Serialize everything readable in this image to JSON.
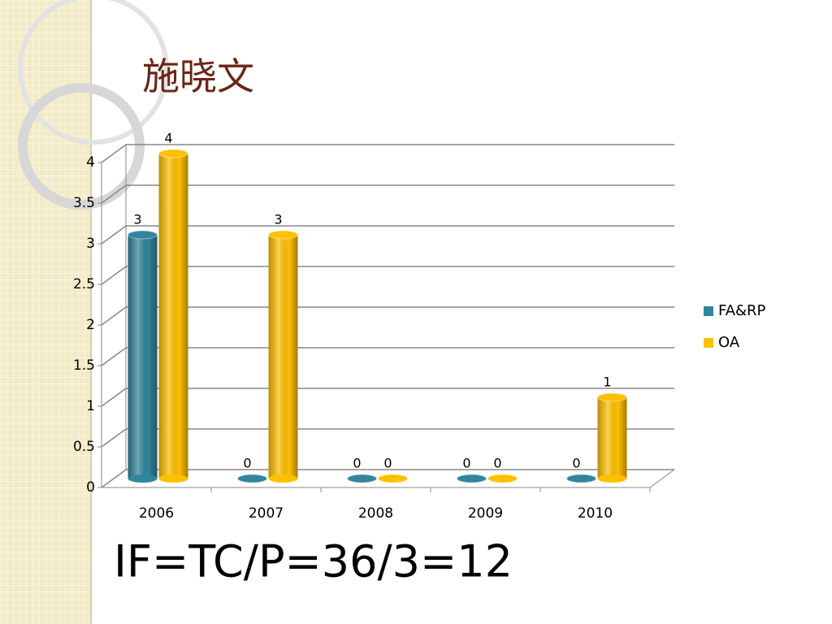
{
  "chart_data": {
    "type": "bar",
    "title": "施晓文",
    "annotation": "IF=TC/P=36/3=12",
    "categories": [
      "2006",
      "2007",
      "2008",
      "2009",
      "2010"
    ],
    "series": [
      {
        "name": "FA&RP",
        "color": "#31859c",
        "values": [
          3,
          0,
          0,
          0,
          0
        ]
      },
      {
        "name": "OA",
        "color": "#ffc000",
        "values": [
          4,
          3,
          0,
          0,
          1
        ]
      }
    ],
    "ylim": [
      0,
      4
    ],
    "yticks": [
      0,
      0.5,
      1,
      1.5,
      2,
      2.5,
      3,
      3.5,
      4
    ],
    "grid": true,
    "legend": "right"
  }
}
